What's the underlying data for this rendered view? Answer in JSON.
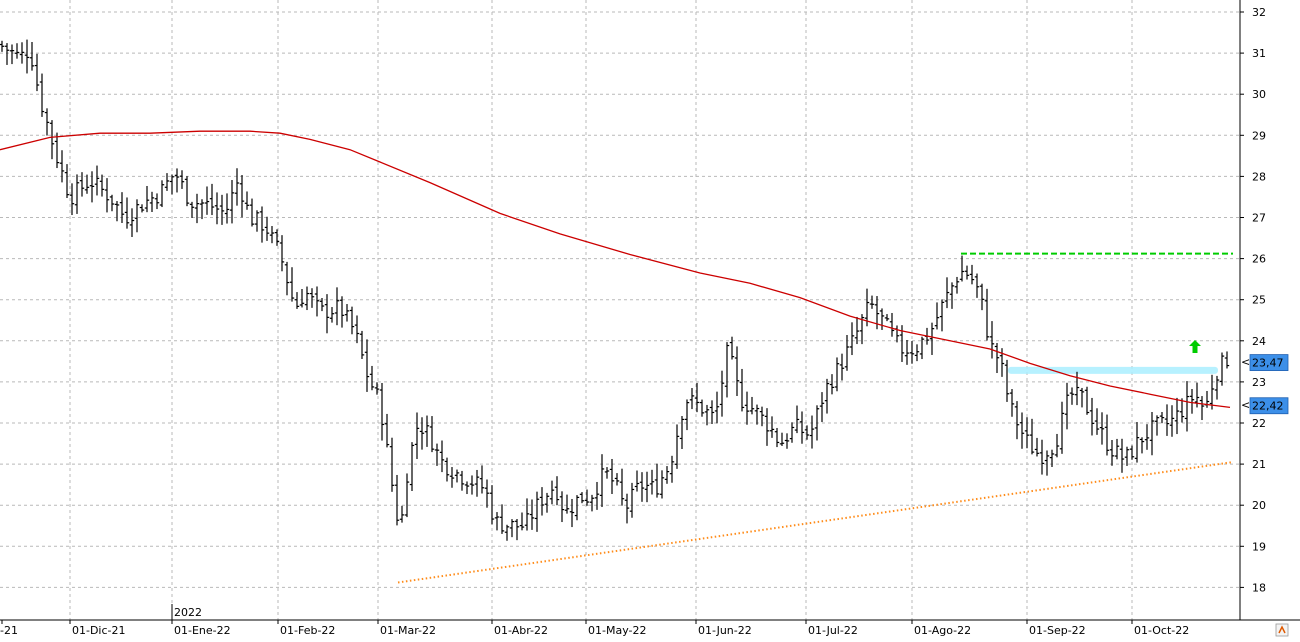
{
  "chart_data": {
    "type": "ohlc",
    "year_label": "2022",
    "x_tick_labels": [
      "-21",
      "01-Dic-21",
      "01-Ene-22",
      "01-Feb-22",
      "01-Mar-22",
      "01-Abr-22",
      "01-May-22",
      "01-Jun-22",
      "01-Jul-22",
      "01-Ago-22",
      "01-Sep-22",
      "01-Oct-22"
    ],
    "y_ticks": [
      18,
      19,
      20,
      21,
      22,
      23,
      24,
      25,
      26,
      27,
      28,
      29,
      30,
      31,
      32
    ],
    "ylim": [
      17.65,
      32.3
    ],
    "grid": true,
    "price_path": [
      [
        0,
        31.2
      ],
      [
        20,
        30.9
      ],
      [
        30,
        31.1
      ],
      [
        40,
        29.9
      ],
      [
        55,
        28.6
      ],
      [
        70,
        27.5
      ],
      [
        90,
        27.9
      ],
      [
        110,
        27.5
      ],
      [
        125,
        27.0
      ],
      [
        140,
        27.3
      ],
      [
        160,
        27.6
      ],
      [
        175,
        28.1
      ],
      [
        190,
        27.4
      ],
      [
        210,
        27.3
      ],
      [
        225,
        27.1
      ],
      [
        238,
        27.9
      ],
      [
        250,
        27.0
      ],
      [
        265,
        26.8
      ],
      [
        280,
        26.1
      ],
      [
        295,
        24.8
      ],
      [
        305,
        25.2
      ],
      [
        320,
        24.7
      ],
      [
        340,
        24.8
      ],
      [
        355,
        24.2
      ],
      [
        368,
        23.1
      ],
      [
        380,
        22.5
      ],
      [
        392,
        20.5
      ],
      [
        400,
        19.3
      ],
      [
        408,
        21.0
      ],
      [
        418,
        22.0
      ],
      [
        430,
        21.7
      ],
      [
        440,
        21.1
      ],
      [
        455,
        20.8
      ],
      [
        470,
        20.6
      ],
      [
        485,
        20.4
      ],
      [
        495,
        19.6
      ],
      [
        510,
        19.5
      ],
      [
        525,
        19.5
      ],
      [
        540,
        20.1
      ],
      [
        555,
        20.5
      ],
      [
        565,
        19.8
      ],
      [
        580,
        20.2
      ],
      [
        590,
        20.2
      ],
      [
        605,
        20.8
      ],
      [
        615,
        20.5
      ],
      [
        625,
        19.9
      ],
      [
        640,
        20.5
      ],
      [
        655,
        20.4
      ],
      [
        670,
        21.0
      ],
      [
        685,
        22.6
      ],
      [
        700,
        22.4
      ],
      [
        715,
        22.1
      ],
      [
        728,
        23.8
      ],
      [
        740,
        22.6
      ],
      [
        755,
        22.3
      ],
      [
        770,
        21.9
      ],
      [
        780,
        21.5
      ],
      [
        795,
        21.9
      ],
      [
        810,
        21.7
      ],
      [
        825,
        22.8
      ],
      [
        840,
        23.4
      ],
      [
        855,
        24.1
      ],
      [
        870,
        24.9
      ],
      [
        885,
        24.4
      ],
      [
        900,
        23.8
      ],
      [
        915,
        23.8
      ],
      [
        930,
        24.2
      ],
      [
        945,
        25.0
      ],
      [
        960,
        25.7
      ],
      [
        970,
        25.6
      ],
      [
        980,
        25.1
      ],
      [
        990,
        23.9
      ],
      [
        1000,
        23.5
      ],
      [
        1010,
        22.4
      ],
      [
        1025,
        21.6
      ],
      [
        1040,
        21.2
      ],
      [
        1055,
        21.5
      ],
      [
        1070,
        22.7
      ],
      [
        1082,
        22.6
      ],
      [
        1095,
        22.0
      ],
      [
        1110,
        21.4
      ],
      [
        1125,
        21.1
      ],
      [
        1140,
        21.6
      ],
      [
        1155,
        21.9
      ],
      [
        1170,
        22.0
      ],
      [
        1185,
        22.4
      ],
      [
        1195,
        22.7
      ],
      [
        1205,
        22.3
      ],
      [
        1215,
        23.2
      ],
      [
        1228,
        23.6
      ]
    ],
    "moving_average": [
      [
        0,
        28.65
      ],
      [
        50,
        28.95
      ],
      [
        100,
        29.05
      ],
      [
        150,
        29.05
      ],
      [
        200,
        29.1
      ],
      [
        250,
        29.1
      ],
      [
        280,
        29.05
      ],
      [
        310,
        28.9
      ],
      [
        350,
        28.65
      ],
      [
        380,
        28.35
      ],
      [
        430,
        27.85
      ],
      [
        500,
        27.1
      ],
      [
        560,
        26.6
      ],
      [
        630,
        26.1
      ],
      [
        700,
        25.65
      ],
      [
        750,
        25.4
      ],
      [
        800,
        25.05
      ],
      [
        850,
        24.6
      ],
      [
        900,
        24.25
      ],
      [
        950,
        24.0
      ],
      [
        990,
        23.8
      ],
      [
        1030,
        23.45
      ],
      [
        1070,
        23.15
      ],
      [
        1110,
        22.9
      ],
      [
        1150,
        22.7
      ],
      [
        1190,
        22.5
      ],
      [
        1230,
        22.38
      ]
    ],
    "resistance_line": {
      "y": 26.12,
      "x_start": 961,
      "x_end": 1233,
      "color": "#00cc00"
    },
    "support_trendline": {
      "from": [
        398,
        18.12
      ],
      "to": [
        1233,
        21.05
      ],
      "color": "#ff8c1a"
    },
    "highlight_band": {
      "y": 23.28,
      "x_start": 1008,
      "x_end": 1218,
      "color": "#aaeeff"
    },
    "arrow_marker": {
      "x": 1195,
      "y": 23.85,
      "color": "#00cc00"
    },
    "price_labels": [
      {
        "value": 23.47,
        "text": "23,47",
        "color": "#3c8fe8"
      },
      {
        "value": 22.42,
        "text": "22,42",
        "color": "#3c8fe8"
      }
    ],
    "colors": {
      "price_bars": "#000000",
      "moving_average": "#cc0000",
      "grid": "#b9b9b9"
    }
  }
}
